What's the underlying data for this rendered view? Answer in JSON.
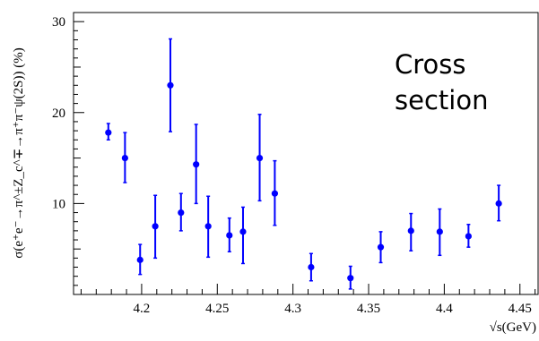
{
  "chart_data": {
    "type": "scatter",
    "title": "",
    "xlabel": "√s(GeV)",
    "ylabel": "σ(e⁺e⁻→π^±Z_c^∓→π⁺π⁻ψ(2S)) (%)",
    "annotation": [
      "Cross",
      "section"
    ],
    "xlim": [
      4.155,
      4.462
    ],
    "ylim": [
      0,
      31
    ],
    "xticks": [
      4.2,
      4.25,
      4.3,
      4.35,
      4.4,
      4.45
    ],
    "xtick_labels": [
      "4.2",
      "4.25",
      "4.3",
      "4.35",
      "4.4",
      "4.45"
    ],
    "yticks": [
      10,
      20,
      30
    ],
    "ytick_labels": [
      "10",
      "20",
      "30"
    ],
    "grid": false,
    "color": "#0000ff",
    "points": [
      {
        "x": 4.178,
        "y": 17.8,
        "lo": 17.0,
        "hi": 18.8
      },
      {
        "x": 4.189,
        "y": 15.0,
        "lo": 12.3,
        "hi": 17.8
      },
      {
        "x": 4.199,
        "y": 3.8,
        "lo": 2.2,
        "hi": 5.5
      },
      {
        "x": 4.209,
        "y": 7.5,
        "lo": 4.0,
        "hi": 10.9
      },
      {
        "x": 4.219,
        "y": 23.0,
        "lo": 17.9,
        "hi": 28.1
      },
      {
        "x": 4.226,
        "y": 9.0,
        "lo": 7.0,
        "hi": 11.1
      },
      {
        "x": 4.236,
        "y": 14.3,
        "lo": 10.0,
        "hi": 18.7
      },
      {
        "x": 4.244,
        "y": 7.5,
        "lo": 4.1,
        "hi": 10.8
      },
      {
        "x": 4.258,
        "y": 6.5,
        "lo": 4.7,
        "hi": 8.4
      },
      {
        "x": 4.267,
        "y": 6.9,
        "lo": 3.4,
        "hi": 9.6
      },
      {
        "x": 4.278,
        "y": 15.0,
        "lo": 10.3,
        "hi": 19.8
      },
      {
        "x": 4.288,
        "y": 11.1,
        "lo": 7.6,
        "hi": 14.7
      },
      {
        "x": 4.312,
        "y": 3.0,
        "lo": 1.5,
        "hi": 4.5
      },
      {
        "x": 4.338,
        "y": 1.8,
        "lo": 0.6,
        "hi": 3.1
      },
      {
        "x": 4.358,
        "y": 5.2,
        "lo": 3.5,
        "hi": 6.9
      },
      {
        "x": 4.378,
        "y": 7.0,
        "lo": 4.8,
        "hi": 8.9
      },
      {
        "x": 4.397,
        "y": 6.9,
        "lo": 4.3,
        "hi": 9.4
      },
      {
        "x": 4.416,
        "y": 6.4,
        "lo": 5.2,
        "hi": 7.7
      },
      {
        "x": 4.436,
        "y": 10.0,
        "lo": 8.1,
        "hi": 12.0
      }
    ]
  }
}
